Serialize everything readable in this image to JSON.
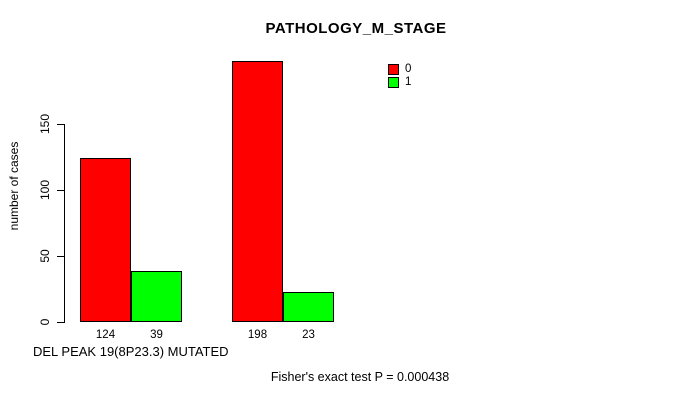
{
  "chart_data": {
    "type": "bar",
    "title": "PATHOLOGY_M_STAGE",
    "xlabel": "DEL PEAK 19(8P23.3) MUTATED",
    "ylabel": "number of cases",
    "ylim": [
      0,
      150
    ],
    "yticks": [
      0,
      50,
      100,
      150
    ],
    "grid": false,
    "legend_position": "top-right",
    "series": [
      {
        "name": "0",
        "color": "#FF0000",
        "values": [
          124,
          198
        ]
      },
      {
        "name": "1",
        "color": "#00FF00",
        "values": [
          39,
          23
        ]
      }
    ],
    "bar_value_labels": [
      "124",
      "39",
      "198",
      "23"
    ],
    "annotation": "Fisher's exact test P = 0.000438",
    "colors": {
      "bar_border": "#000000",
      "background": "#FFFFFF",
      "text": "#000000"
    }
  }
}
